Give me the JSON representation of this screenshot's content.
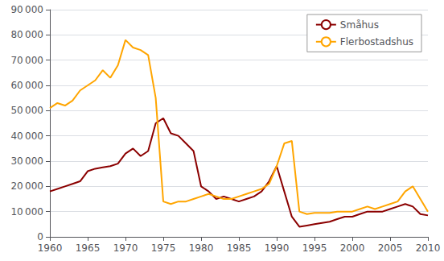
{
  "chart_data": {
    "type": "line",
    "x": [
      1960,
      1961,
      1962,
      1963,
      1964,
      1965,
      1966,
      1967,
      1968,
      1969,
      1970,
      1971,
      1972,
      1973,
      1974,
      1975,
      1976,
      1977,
      1978,
      1979,
      1980,
      1981,
      1982,
      1983,
      1984,
      1985,
      1986,
      1987,
      1988,
      1989,
      1990,
      1991,
      1992,
      1993,
      1994,
      1995,
      1996,
      1997,
      1998,
      1999,
      2000,
      2001,
      2002,
      2003,
      2004,
      2005,
      2006,
      2007,
      2008,
      2009,
      2010
    ],
    "series": [
      {
        "name": "Småhus",
        "color": "#8B0000",
        "values": [
          18000,
          19000,
          20000,
          21000,
          22000,
          26000,
          27000,
          27500,
          28000,
          29000,
          33000,
          35000,
          32000,
          34000,
          45000,
          47000,
          41000,
          40000,
          37000,
          34000,
          20000,
          18000,
          15000,
          16000,
          15000,
          14000,
          15000,
          16000,
          18000,
          22000,
          28000,
          18000,
          8000,
          4000,
          4500,
          5000,
          5500,
          6000,
          7000,
          8000,
          8000,
          9000,
          10000,
          10000,
          10000,
          11000,
          12000,
          13000,
          12000,
          9000,
          8500
        ]
      },
      {
        "name": "Flerbostadshus",
        "color": "#FFA500",
        "values": [
          51000,
          53000,
          52000,
          54000,
          58000,
          60000,
          62000,
          66000,
          63000,
          68000,
          78000,
          75000,
          74000,
          72000,
          55000,
          14000,
          13000,
          14000,
          14000,
          15000,
          16000,
          17000,
          16000,
          15000,
          15000,
          16000,
          17000,
          18000,
          19000,
          21000,
          28000,
          37000,
          38000,
          10000,
          9000,
          9500,
          9500,
          9500,
          10000,
          10000,
          10000,
          11000,
          12000,
          11000,
          12000,
          13000,
          14000,
          18000,
          20000,
          15000,
          10000
        ]
      }
    ],
    "xlim": [
      1960,
      2010
    ],
    "xticks": [
      1960,
      1965,
      1970,
      1975,
      1980,
      1985,
      1990,
      1995,
      2000,
      2005,
      2010
    ],
    "ylim": [
      0,
      90000
    ],
    "yticks": [
      0,
      {
        "value": 10000,
        "label": "10 000"
      },
      {
        "value": 20000,
        "label": "20 000"
      },
      {
        "value": 30000,
        "label": "30 000"
      },
      {
        "value": 40000,
        "label": "40 000"
      },
      {
        "value": 50000,
        "label": "50 000"
      },
      {
        "value": 60000,
        "label": "60 000"
      },
      {
        "value": 70000,
        "label": "70 000"
      },
      {
        "value": 80000,
        "label": "80 000"
      },
      {
        "value": 90000,
        "label": "90 000"
      }
    ],
    "grid": true,
    "legend": "upper right"
  }
}
